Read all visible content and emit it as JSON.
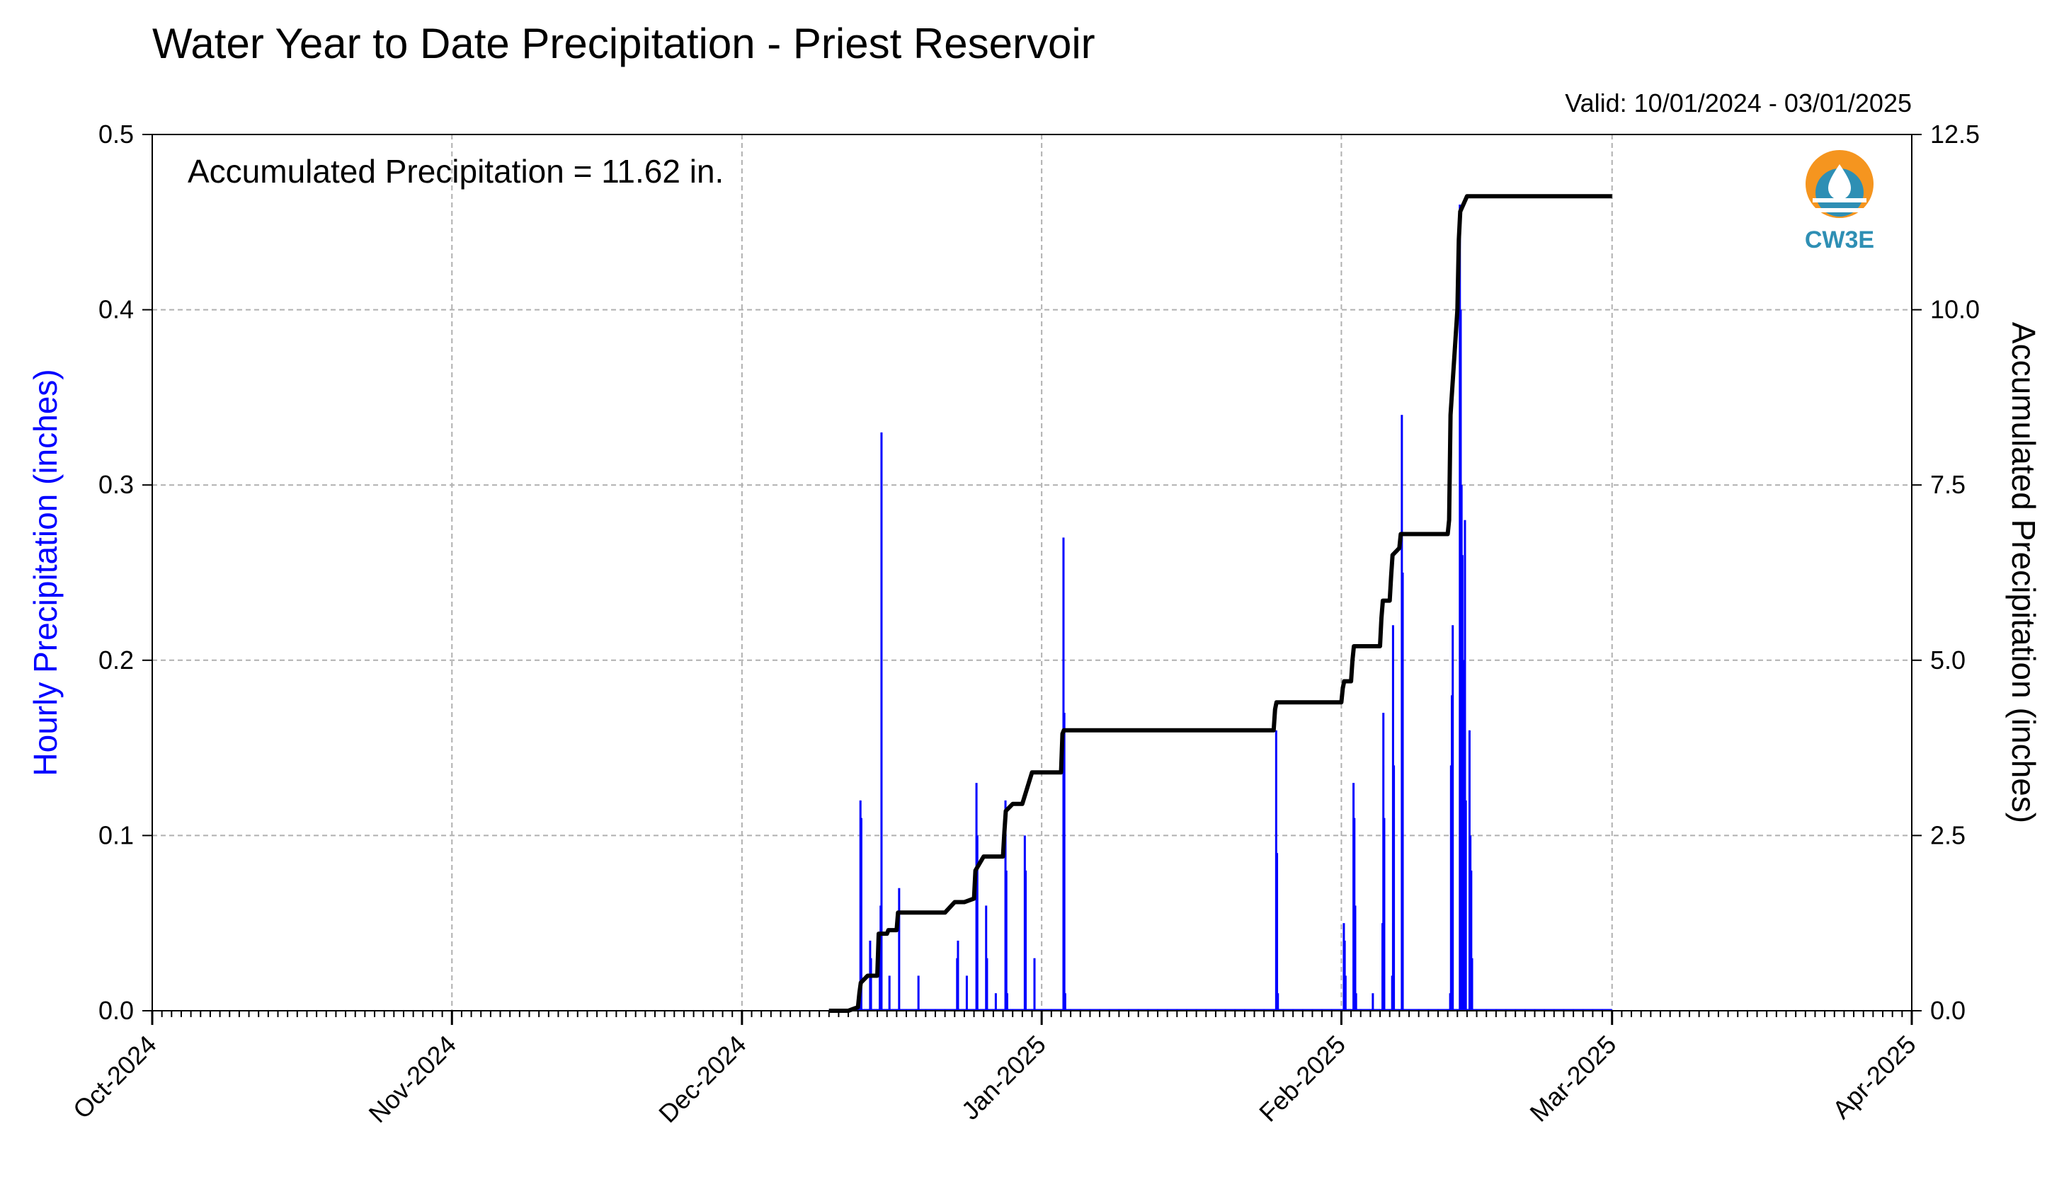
{
  "chart_data": {
    "type": "bar",
    "title": "Water Year to Date Precipitation - Priest Reservoir",
    "valid_text": "Valid: 10/01/2024 - 03/01/2025",
    "annotation": "Accumulated Precipitation = 11.62 in.",
    "logo_text": "CW3E",
    "y_left_label": "Hourly Precipitation (inches)",
    "y_right_label": "Accumulated Precipitation (inches)",
    "x_range": [
      "2024-10-01",
      "2025-04-01"
    ],
    "x_tick_labels": [
      "Oct-2024",
      "Nov-2024",
      "Dec-2024",
      "Jan-2025",
      "Feb-2025",
      "Mar-2025",
      "Apr-2025"
    ],
    "y_left_range": [
      0,
      0.5
    ],
    "y_left_ticks": [
      "0.0",
      "0.1",
      "0.2",
      "0.3",
      "0.4",
      "0.5"
    ],
    "y_right_range": [
      0,
      12.5
    ],
    "y_right_ticks": [
      "0.0",
      "2.5",
      "5.0",
      "7.5",
      "10.0",
      "12.5"
    ],
    "grid": true,
    "colors": {
      "hourly": "#0000ff",
      "accumulated": "#000000",
      "grid": "#b0b0b0"
    },
    "series": [
      {
        "name": "Hourly Precipitation",
        "color": "#0000ff",
        "points": [
          [
            "2024-12-13",
            0.12
          ],
          [
            "2024-12-13",
            0.11
          ],
          [
            "2024-12-14",
            0.04
          ],
          [
            "2024-12-14",
            0.03
          ],
          [
            "2024-12-15",
            0.03
          ],
          [
            "2024-12-15",
            0.06
          ],
          [
            "2024-12-15",
            0.33
          ],
          [
            "2024-12-16",
            0.02
          ],
          [
            "2024-12-17",
            0.07
          ],
          [
            "2024-12-19",
            0.02
          ],
          [
            "2024-12-23",
            0.03
          ],
          [
            "2024-12-23",
            0.04
          ],
          [
            "2024-12-24",
            0.02
          ],
          [
            "2024-12-25",
            0.13
          ],
          [
            "2024-12-25",
            0.1
          ],
          [
            "2024-12-26",
            0.06
          ],
          [
            "2024-12-26",
            0.03
          ],
          [
            "2024-12-27",
            0.01
          ],
          [
            "2024-12-28",
            0.12
          ],
          [
            "2024-12-28",
            0.08
          ],
          [
            "2024-12-28",
            0.01
          ],
          [
            "2024-12-30",
            0.1
          ],
          [
            "2024-12-30",
            0.08
          ],
          [
            "2024-12-31",
            0.03
          ],
          [
            "2025-01-03",
            0.27
          ],
          [
            "2025-01-03",
            0.17
          ],
          [
            "2025-01-03",
            0.01
          ],
          [
            "2025-01-25",
            0.16
          ],
          [
            "2025-01-25",
            0.09
          ],
          [
            "2025-01-25",
            0.01
          ],
          [
            "2025-02-01",
            0.05
          ],
          [
            "2025-02-01",
            0.04
          ],
          [
            "2025-02-01",
            0.02
          ],
          [
            "2025-02-02",
            0.13
          ],
          [
            "2025-02-02",
            0.11
          ],
          [
            "2025-02-02",
            0.06
          ],
          [
            "2025-02-02",
            0.01
          ],
          [
            "2025-02-04",
            0.01
          ],
          [
            "2025-02-05",
            0.05
          ],
          [
            "2025-02-05",
            0.17
          ],
          [
            "2025-02-05",
            0.11
          ],
          [
            "2025-02-06",
            0.02
          ],
          [
            "2025-02-06",
            0.22
          ],
          [
            "2025-02-06",
            0.14
          ],
          [
            "2025-02-07",
            0.34
          ],
          [
            "2025-02-07",
            0.25
          ],
          [
            "2025-02-12",
            0.01
          ],
          [
            "2025-02-12",
            0.14
          ],
          [
            "2025-02-12",
            0.18
          ],
          [
            "2025-02-12",
            0.22
          ],
          [
            "2025-02-13",
            0.46
          ],
          [
            "2025-02-13",
            0.4
          ],
          [
            "2025-02-13",
            0.3
          ],
          [
            "2025-02-13",
            0.26
          ],
          [
            "2025-02-13",
            0.2
          ],
          [
            "2025-02-13",
            0.16
          ],
          [
            "2025-02-13",
            0.28
          ],
          [
            "2025-02-13",
            0.12
          ],
          [
            "2025-02-14",
            0.16
          ],
          [
            "2025-02-14",
            0.1
          ],
          [
            "2025-02-14",
            0.08
          ],
          [
            "2025-02-14",
            0.03
          ]
        ]
      },
      {
        "name": "Accumulated Precipitation",
        "color": "#000000",
        "points": [
          [
            "2024-12-10",
            0.0
          ],
          [
            "2024-12-12",
            0.0
          ],
          [
            "2024-12-13",
            0.05
          ],
          [
            "2024-12-13",
            0.25
          ],
          [
            "2024-12-13",
            0.4
          ],
          [
            "2024-12-14",
            0.5
          ],
          [
            "2024-12-15",
            0.5
          ],
          [
            "2024-12-15",
            1.1
          ],
          [
            "2024-12-16",
            1.1
          ],
          [
            "2024-12-16",
            1.15
          ],
          [
            "2024-12-17",
            1.15
          ],
          [
            "2024-12-17",
            1.4
          ],
          [
            "2024-12-22",
            1.4
          ],
          [
            "2024-12-23",
            1.55
          ],
          [
            "2024-12-24",
            1.55
          ],
          [
            "2024-12-25",
            1.6
          ],
          [
            "2024-12-25",
            2.0
          ],
          [
            "2024-12-26",
            2.2
          ],
          [
            "2024-12-28",
            2.2
          ],
          [
            "2024-12-28",
            2.55
          ],
          [
            "2024-12-28",
            2.85
          ],
          [
            "2024-12-29",
            2.95
          ],
          [
            "2024-12-30",
            2.95
          ],
          [
            "2024-12-31",
            3.4
          ],
          [
            "2025-01-03",
            3.4
          ],
          [
            "2025-01-03",
            3.95
          ],
          [
            "2025-01-03",
            4.0
          ],
          [
            "2025-01-25",
            4.0
          ],
          [
            "2025-01-25",
            4.3
          ],
          [
            "2025-01-25",
            4.4
          ],
          [
            "2025-02-01",
            4.4
          ],
          [
            "2025-02-01",
            4.6
          ],
          [
            "2025-02-01",
            4.7
          ],
          [
            "2025-02-02",
            4.7
          ],
          [
            "2025-02-02",
            5.0
          ],
          [
            "2025-02-02",
            5.2
          ],
          [
            "2025-02-05",
            5.2
          ],
          [
            "2025-02-05",
            5.6
          ],
          [
            "2025-02-05",
            5.85
          ],
          [
            "2025-02-06",
            5.85
          ],
          [
            "2025-02-06",
            6.2
          ],
          [
            "2025-02-06",
            6.5
          ],
          [
            "2025-02-07",
            6.6
          ],
          [
            "2025-02-07",
            6.8
          ],
          [
            "2025-02-12",
            6.8
          ],
          [
            "2025-02-12",
            7.0
          ],
          [
            "2025-02-12",
            8.5
          ],
          [
            "2025-02-13",
            10.0
          ],
          [
            "2025-02-13",
            11.0
          ],
          [
            "2025-02-13",
            11.4
          ],
          [
            "2025-02-14",
            11.62
          ],
          [
            "2025-03-01",
            11.62
          ]
        ]
      }
    ]
  }
}
